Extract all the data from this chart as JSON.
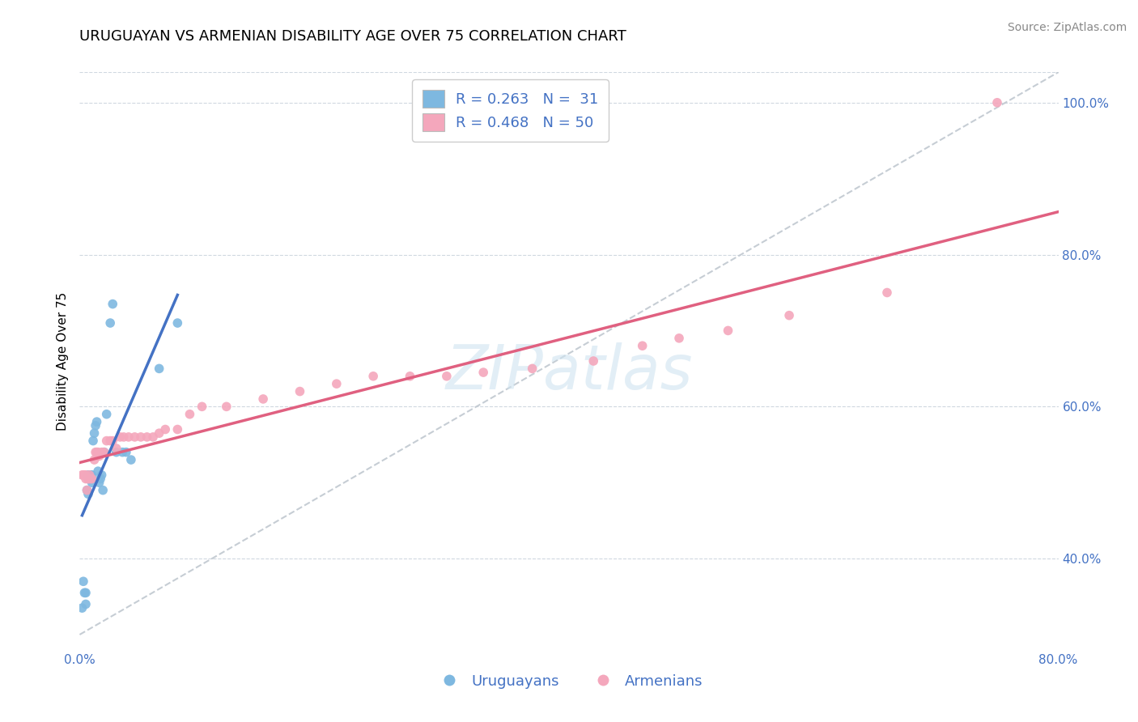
{
  "title": "URUGUAYAN VS ARMENIAN DISABILITY AGE OVER 75 CORRELATION CHART",
  "source_text": "Source: ZipAtlas.com",
  "ylabel": "Disability Age Over 75",
  "xlim": [
    0.0,
    0.8
  ],
  "ylim": [
    0.28,
    1.04
  ],
  "xtick_labels": [
    "0.0%",
    "80.0%"
  ],
  "ytick_labels": [
    "40.0%",
    "60.0%",
    "80.0%",
    "100.0%"
  ],
  "ytick_values": [
    0.4,
    0.6,
    0.8,
    1.0
  ],
  "xtick_values": [
    0.0,
    0.8
  ],
  "legend_r_blue": "R = 0.263",
  "legend_n_blue": "N =  31",
  "legend_r_pink": "R = 0.468",
  "legend_n_pink": "N = 50",
  "watermark": "ZIPatlas",
  "blue_color": "#7eb8e0",
  "pink_color": "#f4a7bc",
  "blue_line_color": "#4472C4",
  "pink_line_color": "#e06080",
  "diagonal_color": "#c0c8d0",
  "grid_color": "#d0d8e0",
  "uruguayan_x": [
    0.002,
    0.003,
    0.004,
    0.005,
    0.005,
    0.006,
    0.007,
    0.007,
    0.008,
    0.009,
    0.01,
    0.01,
    0.011,
    0.012,
    0.013,
    0.014,
    0.015,
    0.016,
    0.017,
    0.018,
    0.019,
    0.02,
    0.022,
    0.025,
    0.027,
    0.03,
    0.035,
    0.038,
    0.042,
    0.065,
    0.08
  ],
  "uruguayan_y": [
    0.335,
    0.37,
    0.355,
    0.34,
    0.355,
    0.49,
    0.485,
    0.51,
    0.505,
    0.51,
    0.5,
    0.51,
    0.555,
    0.565,
    0.575,
    0.58,
    0.515,
    0.5,
    0.505,
    0.51,
    0.49,
    0.54,
    0.59,
    0.71,
    0.735,
    0.54,
    0.54,
    0.54,
    0.53,
    0.65,
    0.71
  ],
  "armenian_x": [
    0.002,
    0.003,
    0.004,
    0.005,
    0.005,
    0.006,
    0.007,
    0.007,
    0.008,
    0.009,
    0.01,
    0.012,
    0.013,
    0.014,
    0.015,
    0.016,
    0.018,
    0.02,
    0.022,
    0.025,
    0.027,
    0.03,
    0.033,
    0.036,
    0.04,
    0.045,
    0.05,
    0.055,
    0.06,
    0.065,
    0.07,
    0.08,
    0.09,
    0.1,
    0.12,
    0.15,
    0.18,
    0.21,
    0.24,
    0.27,
    0.3,
    0.33,
    0.37,
    0.42,
    0.46,
    0.49,
    0.53,
    0.58,
    0.66,
    0.75
  ],
  "armenian_y": [
    0.51,
    0.51,
    0.51,
    0.51,
    0.505,
    0.49,
    0.505,
    0.505,
    0.51,
    0.505,
    0.505,
    0.53,
    0.54,
    0.54,
    0.54,
    0.535,
    0.54,
    0.54,
    0.555,
    0.555,
    0.555,
    0.545,
    0.56,
    0.56,
    0.56,
    0.56,
    0.56,
    0.56,
    0.56,
    0.565,
    0.57,
    0.57,
    0.59,
    0.6,
    0.6,
    0.61,
    0.62,
    0.63,
    0.64,
    0.64,
    0.64,
    0.645,
    0.65,
    0.66,
    0.68,
    0.69,
    0.7,
    0.72,
    0.75,
    1.0
  ],
  "title_fontsize": 13,
  "axis_label_fontsize": 11,
  "tick_fontsize": 11,
  "legend_fontsize": 13,
  "watermark_fontsize": 55,
  "source_fontsize": 10
}
